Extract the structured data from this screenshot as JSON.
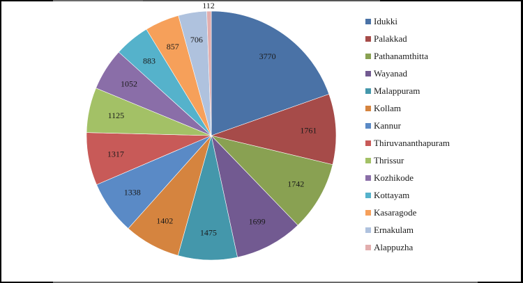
{
  "chart_data": {
    "type": "pie",
    "title": "",
    "categories": [
      "Idukki",
      "Palakkad",
      "Pathanamthitta",
      "Wayanad",
      "Malappuram",
      "Kollam",
      "Kannur",
      "Thiruvananthapuram",
      "Thrissur",
      "Kozhikode",
      "Kottayam",
      "Kasaragode",
      "Ernakulam",
      "Alappuzha"
    ],
    "values": [
      3770,
      1761,
      1742,
      1699,
      1475,
      1402,
      1338,
      1317,
      1125,
      1052,
      883,
      857,
      706,
      112
    ],
    "colors": [
      "#4a72a6",
      "#a64b49",
      "#89a152",
      "#725a91",
      "#4497ab",
      "#d5843f",
      "#5a8ac6",
      "#c85a58",
      "#a3c166",
      "#8a6ea8",
      "#55b2cb",
      "#f6a05a",
      "#afc2de",
      "#e2aeae"
    ],
    "data_labels": [
      "3770",
      "1761",
      "1742",
      "1699",
      "1475",
      "1402",
      "1338",
      "1317",
      "1125",
      "1052",
      "883",
      "857",
      "706",
      "112"
    ],
    "legend_position": "right",
    "start_angle_deg": 0,
    "direction": "clockwise"
  },
  "legend": {
    "items": [
      {
        "label": "Idukki",
        "color": "#4a72a6"
      },
      {
        "label": "Palakkad",
        "color": "#a64b49"
      },
      {
        "label": "Pathanamthitta",
        "color": "#89a152"
      },
      {
        "label": "Wayanad",
        "color": "#725a91"
      },
      {
        "label": "Malappuram",
        "color": "#4497ab"
      },
      {
        "label": "Kollam",
        "color": "#d5843f"
      },
      {
        "label": "Kannur",
        "color": "#5a8ac6"
      },
      {
        "label": "Thiruvananthapuram",
        "color": "#c85a58"
      },
      {
        "label": "Thrissur",
        "color": "#a3c166"
      },
      {
        "label": "Kozhikode",
        "color": "#8a6ea8"
      },
      {
        "label": "Kottayam",
        "color": "#55b2cb"
      },
      {
        "label": "Kasaragode",
        "color": "#f6a05a"
      },
      {
        "label": "Ernakulam",
        "color": "#afc2de"
      },
      {
        "label": "Alappuzha",
        "color": "#e2aeae"
      }
    ]
  }
}
